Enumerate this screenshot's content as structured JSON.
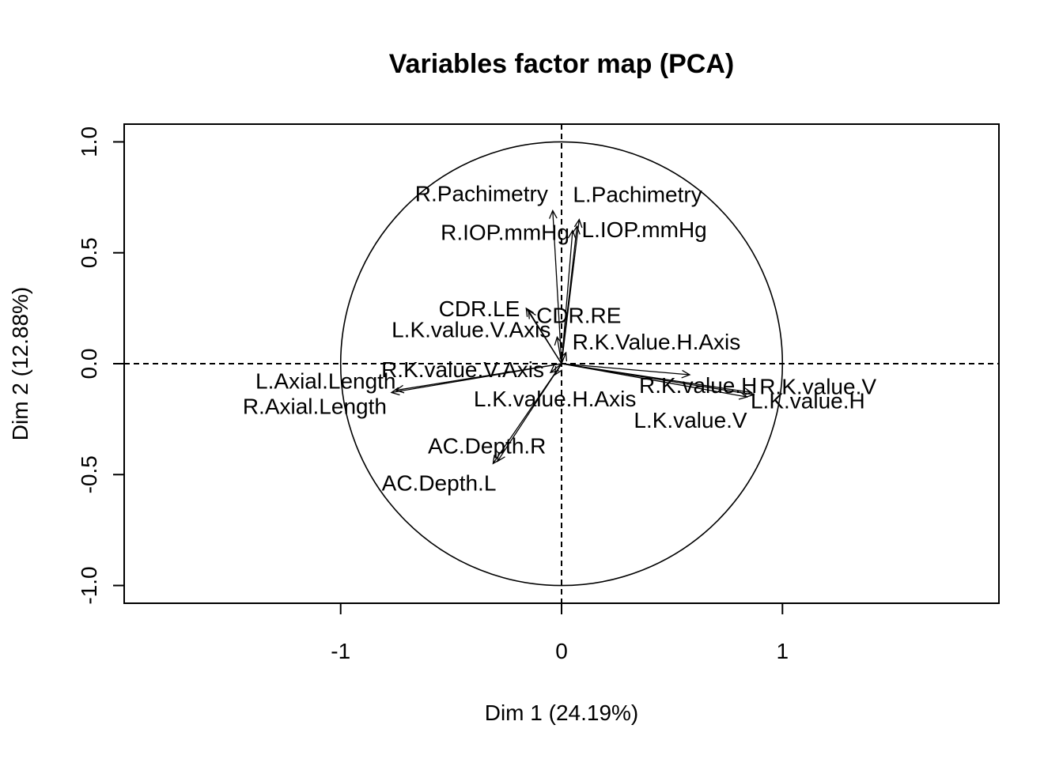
{
  "chart_data": {
    "type": "scatter",
    "title": "Variables factor map (PCA)",
    "xlabel": "Dim 1 (24.19%)",
    "ylabel": "Dim 2 (12.88%)",
    "xlim": [
      -1.98,
      1.98
    ],
    "ylim": [
      -1.08,
      1.08
    ],
    "x_ticks": [
      -1,
      0,
      1
    ],
    "x_tick_labels": [
      "-1",
      "0",
      "1"
    ],
    "y_ticks": [
      -1.0,
      -0.5,
      0.0,
      0.5,
      1.0
    ],
    "y_tick_labels": [
      "-1.0",
      "-0.5",
      "0.0",
      "0.5",
      "1.0"
    ],
    "reference_circle_radius": 1,
    "reference_lines": "dashed at x=0 and y=0",
    "variables": [
      {
        "name": "R.Pachimetry",
        "x": -0.04,
        "y": 0.69
      },
      {
        "name": "L.Pachimetry",
        "x": 0.08,
        "y": 0.65
      },
      {
        "name": "R.IOP.mmHg",
        "x": 0.05,
        "y": 0.6
      },
      {
        "name": "L.IOP.mmHg",
        "x": 0.07,
        "y": 0.62
      },
      {
        "name": "CDR.LE",
        "x": -0.16,
        "y": 0.25
      },
      {
        "name": "CDR.RE",
        "x": -0.15,
        "y": 0.24
      },
      {
        "name": "L.K.value.V.Axis",
        "x": -0.02,
        "y": 0.12
      },
      {
        "name": "R.K.Value.H.Axis",
        "x": 0.02,
        "y": 0.05
      },
      {
        "name": "R.K.value.V.Axis",
        "x": -0.05,
        "y": -0.04
      },
      {
        "name": "L.K.value.H.Axis",
        "x": -0.03,
        "y": -0.05
      },
      {
        "name": "L.Axial.Length",
        "x": -0.75,
        "y": -0.12
      },
      {
        "name": "R.Axial.Length",
        "x": -0.77,
        "y": -0.13
      },
      {
        "name": "R.K.value.H",
        "x": 0.58,
        "y": -0.05
      },
      {
        "name": "R.K.value.V",
        "x": 0.86,
        "y": -0.13
      },
      {
        "name": "L.K.value.H",
        "x": 0.87,
        "y": -0.14
      },
      {
        "name": "L.K.value.V",
        "x": 0.84,
        "y": -0.15
      },
      {
        "name": "AC.Depth.R",
        "x": -0.29,
        "y": -0.44
      },
      {
        "name": "AC.Depth.L",
        "x": -0.31,
        "y": -0.45
      }
    ]
  }
}
